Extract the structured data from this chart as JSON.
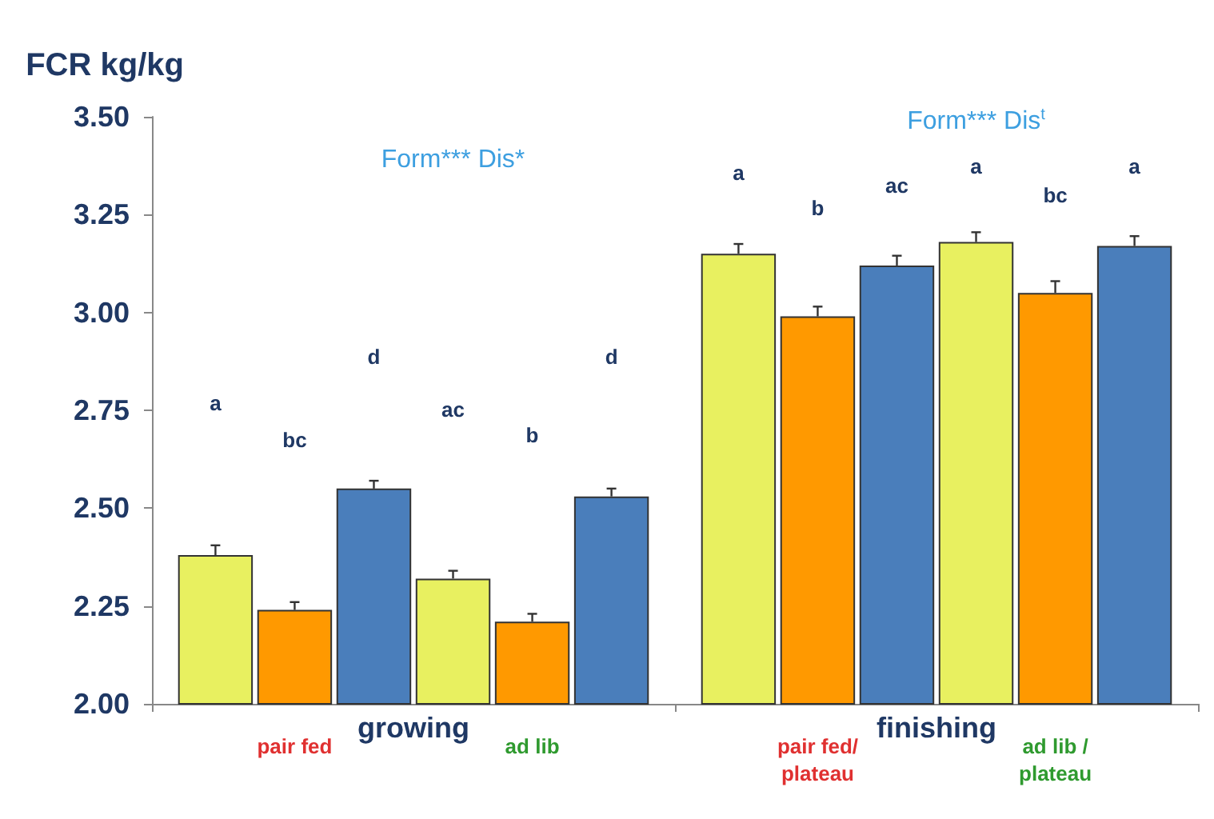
{
  "chart_data": {
    "type": "bar",
    "ylabel": "FCR kg/kg",
    "categories": [
      "growing",
      "finishing"
    ],
    "series": [
      {
        "color": "#e8f060",
        "values": [
          2.38,
          3.15
        ],
        "errors": [
          [
            2.38,
            2.405
          ],
          [
            3.15,
            3.175
          ]
        ]
      },
      {
        "color": "#ff9900",
        "values": [
          2.24,
          2.99
        ],
        "errors": [
          [
            2.24,
            2.26
          ],
          [
            2.99,
            3.015
          ]
        ]
      },
      {
        "color": "#4a7ebb",
        "values": [
          2.55,
          3.12
        ],
        "errors": [
          [
            2.55,
            2.57
          ],
          [
            3.12,
            3.145
          ]
        ]
      },
      {
        "color": "#e8f060",
        "values": [
          2.32,
          3.18
        ],
        "errors": [
          [
            2.32,
            2.34
          ],
          [
            3.18,
            3.205
          ]
        ]
      },
      {
        "color": "#ff9900",
        "values": [
          2.21,
          3.05
        ],
        "errors": [
          [
            2.21,
            2.23
          ],
          [
            3.05,
            3.08
          ]
        ]
      },
      {
        "color": "#4a7ebb",
        "values": [
          2.53,
          3.17
        ],
        "errors": [
          [
            2.53,
            2.55
          ],
          [
            3.17,
            3.195
          ]
        ]
      }
    ],
    "ylim": [
      2.0,
      3.5
    ],
    "yticks": [
      {
        "value": 2.0,
        "label": "2.00"
      },
      {
        "value": 2.25,
        "label": "2.25"
      },
      {
        "value": 2.5,
        "label": "2.50"
      },
      {
        "value": 2.75,
        "label": "2.75"
      },
      {
        "value": 3.0,
        "label": "3.00"
      },
      {
        "value": 3.25,
        "label": "3.25"
      },
      {
        "value": 3.5,
        "label": "3.50"
      }
    ],
    "grid": false,
    "annotations": [
      "Form*** Dis*",
      "Form*** Dis$^{t}$",
      "pair fed",
      "ad lib",
      "pair fed/ plateau",
      "ad lib / plateau",
      "a",
      "bc",
      "d",
      "ac",
      "b",
      "d",
      "a",
      "b",
      "ac",
      "a",
      "bc",
      "a"
    ]
  }
}
